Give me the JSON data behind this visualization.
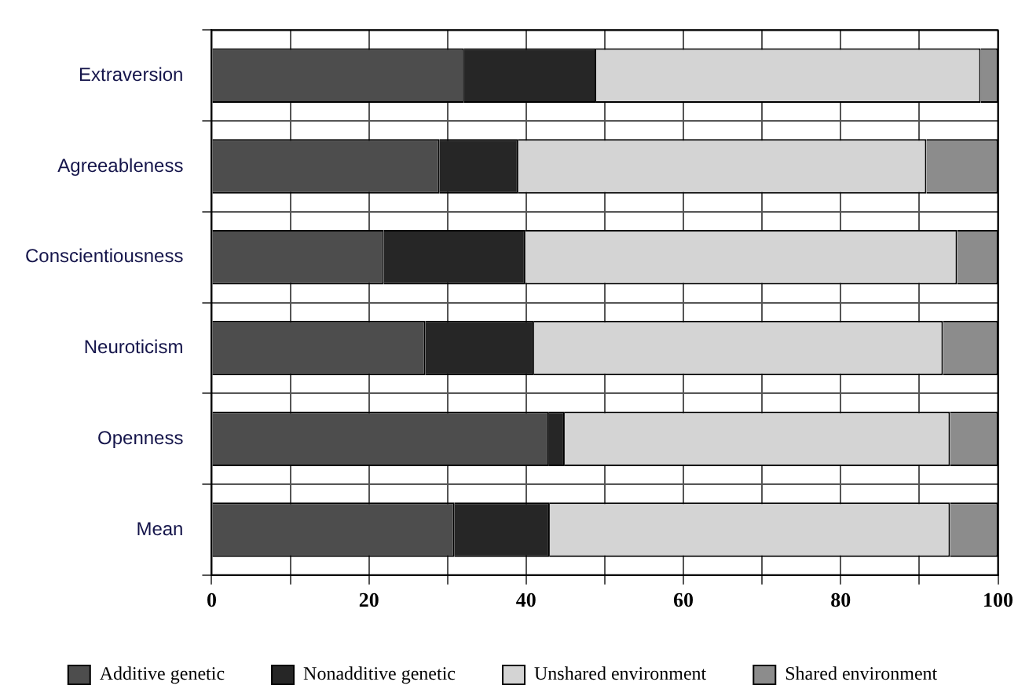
{
  "chart_data": {
    "type": "bar",
    "orientation": "horizontal",
    "stacked": true,
    "categories": [
      "Extraversion",
      "Agreeableness",
      "Conscientiousness",
      "Neuroticism",
      "Openness",
      "Mean"
    ],
    "series": [
      {
        "name": "Additive genetic",
        "color": "#4d4d4d",
        "values": [
          32.1,
          29.0,
          21.9,
          27.2,
          42.9,
          30.9
        ]
      },
      {
        "name": "Nonadditive genetic",
        "color": "#262626",
        "values": [
          16.8,
          10.0,
          18.0,
          13.8,
          2.0,
          12.1
        ]
      },
      {
        "name": "Unshared environment",
        "color": "#d4d4d4",
        "values": [
          48.9,
          51.9,
          54.9,
          52.0,
          49.0,
          50.9
        ]
      },
      {
        "name": "Shared environment",
        "color": "#8c8c8c",
        "values": [
          2.2,
          9.1,
          5.2,
          7.0,
          6.1,
          6.1
        ]
      }
    ],
    "xlim": [
      0,
      100
    ],
    "xticks": [
      0,
      {
        "value": 10,
        "label": null
      },
      20,
      {
        "value": 30,
        "label": null
      },
      40,
      {
        "value": 50,
        "label": null
      },
      60,
      {
        "value": 70,
        "label": null
      },
      80,
      {
        "value": 90,
        "label": null
      },
      100
    ],
    "grid": true,
    "legend": "bottom"
  }
}
